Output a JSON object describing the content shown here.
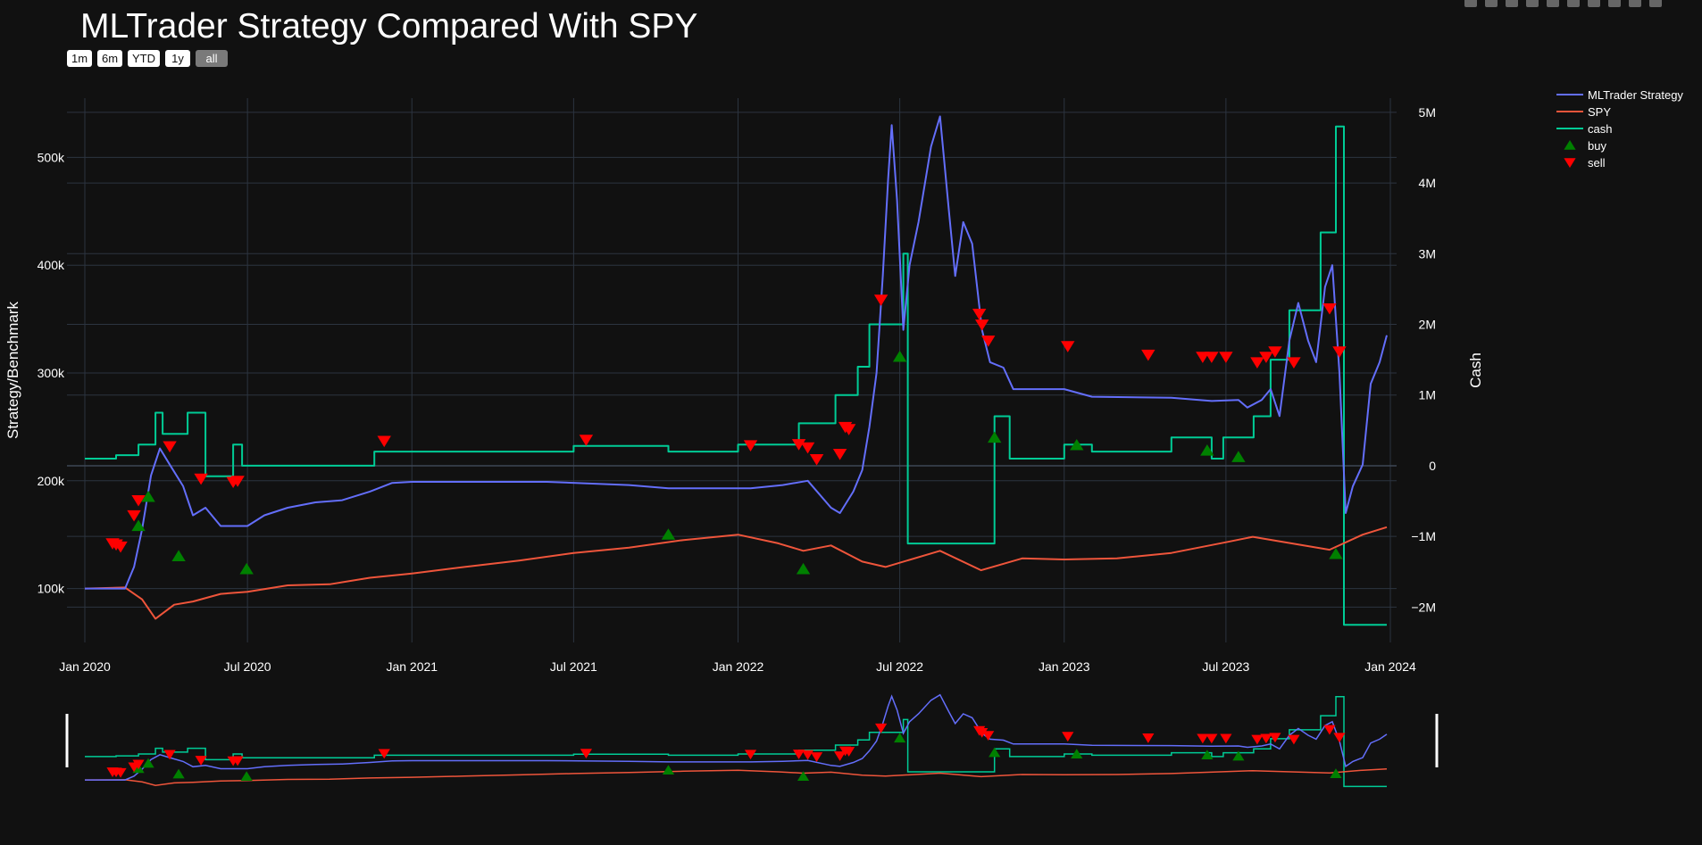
{
  "title": "MLTrader Strategy Compared With SPY",
  "range_buttons": [
    "1m",
    "6m",
    "YTD",
    "1y",
    "all"
  ],
  "active_range": "all",
  "modebar_icons": [
    "camera-icon",
    "zoom-icon",
    "pan-icon",
    "box-select-icon",
    "lasso-icon",
    "zoom-in-icon",
    "zoom-out-icon",
    "autoscale-icon",
    "home-icon",
    "plotly-logo-icon"
  ],
  "colors": {
    "strategy": "#636efa",
    "spy": "#ef553b",
    "cash": "#00cc96",
    "buy": "#008000",
    "sell": "#ff0000",
    "background": "#111111"
  },
  "chart_data": {
    "type": "line",
    "ylabel": "Strategy/Benchmark",
    "y2label": "Cash",
    "x_range": [
      "2019-12-12",
      "2024-01-08"
    ],
    "y_range": [
      50000,
      555000
    ],
    "y2_range": [
      -2500000,
      5200000
    ],
    "x_ticks": [
      {
        "date": "2020-01-01",
        "label": "Jan 2020"
      },
      {
        "date": "2020-07-01",
        "label": "Jul 2020"
      },
      {
        "date": "2021-01-01",
        "label": "Jan 2021"
      },
      {
        "date": "2021-07-01",
        "label": "Jul 2021"
      },
      {
        "date": "2022-01-01",
        "label": "Jan 2022"
      },
      {
        "date": "2022-07-01",
        "label": "Jul 2022"
      },
      {
        "date": "2023-01-01",
        "label": "Jan 2023"
      },
      {
        "date": "2023-07-01",
        "label": "Jul 2023"
      },
      {
        "date": "2024-01-01",
        "label": "Jan 2024"
      }
    ],
    "y_ticks": [
      {
        "value": 100000,
        "label": "100k"
      },
      {
        "value": 200000,
        "label": "200k"
      },
      {
        "value": 300000,
        "label": "300k"
      },
      {
        "value": 400000,
        "label": "400k"
      },
      {
        "value": 500000,
        "label": "500k"
      }
    ],
    "y2_ticks": [
      {
        "value": -2000000,
        "label": "−2M"
      },
      {
        "value": -1000000,
        "label": "−1M"
      },
      {
        "value": 0,
        "label": "0"
      },
      {
        "value": 1000000,
        "label": "1M"
      },
      {
        "value": 2000000,
        "label": "2M"
      },
      {
        "value": 3000000,
        "label": "3M"
      },
      {
        "value": 4000000,
        "label": "4M"
      },
      {
        "value": 5000000,
        "label": "5M"
      }
    ],
    "legend": {
      "placement": "top-right",
      "entries": [
        "MLTrader Strategy",
        "SPY",
        "cash",
        "buy",
        "sell"
      ]
    },
    "series": [
      {
        "name": "MLTrader Strategy",
        "axis": "y",
        "kind": "line",
        "points": [
          [
            "2020-01-01",
            100000
          ],
          [
            "2020-02-15",
            100000
          ],
          [
            "2020-02-25",
            120000
          ],
          [
            "2020-03-05",
            155000
          ],
          [
            "2020-03-15",
            205000
          ],
          [
            "2020-03-25",
            230000
          ],
          [
            "2020-04-05",
            215000
          ],
          [
            "2020-04-20",
            195000
          ],
          [
            "2020-05-01",
            168000
          ],
          [
            "2020-05-15",
            175000
          ],
          [
            "2020-06-01",
            158000
          ],
          [
            "2020-07-01",
            158000
          ],
          [
            "2020-07-20",
            168000
          ],
          [
            "2020-08-15",
            175000
          ],
          [
            "2020-09-15",
            180000
          ],
          [
            "2020-10-15",
            182000
          ],
          [
            "2020-11-15",
            190000
          ],
          [
            "2020-12-10",
            198000
          ],
          [
            "2021-01-01",
            199000
          ],
          [
            "2021-06-01",
            199000
          ],
          [
            "2021-09-01",
            196000
          ],
          [
            "2021-10-15",
            193000
          ],
          [
            "2022-01-15",
            193000
          ],
          [
            "2022-02-20",
            196000
          ],
          [
            "2022-03-20",
            200000
          ],
          [
            "2022-04-15",
            175000
          ],
          [
            "2022-04-25",
            170000
          ],
          [
            "2022-05-10",
            190000
          ],
          [
            "2022-05-20",
            210000
          ],
          [
            "2022-05-28",
            250000
          ],
          [
            "2022-06-05",
            300000
          ],
          [
            "2022-06-12",
            390000
          ],
          [
            "2022-06-18",
            480000
          ],
          [
            "2022-06-22",
            530000
          ],
          [
            "2022-06-28",
            460000
          ],
          [
            "2022-07-05",
            340000
          ],
          [
            "2022-07-12",
            400000
          ],
          [
            "2022-07-22",
            440000
          ],
          [
            "2022-08-05",
            510000
          ],
          [
            "2022-08-15",
            538000
          ],
          [
            "2022-08-25",
            450000
          ],
          [
            "2022-09-01",
            390000
          ],
          [
            "2022-09-10",
            440000
          ],
          [
            "2022-09-20",
            420000
          ],
          [
            "2022-10-01",
            340000
          ],
          [
            "2022-10-10",
            310000
          ],
          [
            "2022-10-25",
            305000
          ],
          [
            "2022-11-05",
            285000
          ],
          [
            "2023-01-01",
            285000
          ],
          [
            "2023-02-01",
            278000
          ],
          [
            "2023-05-01",
            277000
          ],
          [
            "2023-06-15",
            274000
          ],
          [
            "2023-07-15",
            275000
          ],
          [
            "2023-07-25",
            268000
          ],
          [
            "2023-08-10",
            275000
          ],
          [
            "2023-08-20",
            285000
          ],
          [
            "2023-08-30",
            260000
          ],
          [
            "2023-09-10",
            330000
          ],
          [
            "2023-09-20",
            365000
          ],
          [
            "2023-10-01",
            330000
          ],
          [
            "2023-10-10",
            310000
          ],
          [
            "2023-10-20",
            380000
          ],
          [
            "2023-10-28",
            400000
          ],
          [
            "2023-11-05",
            300000
          ],
          [
            "2023-11-12",
            170000
          ],
          [
            "2023-11-20",
            195000
          ],
          [
            "2023-12-01",
            215000
          ],
          [
            "2023-12-10",
            290000
          ],
          [
            "2023-12-20",
            310000
          ],
          [
            "2023-12-28",
            335000
          ]
        ]
      },
      {
        "name": "SPY",
        "axis": "y",
        "kind": "line",
        "points": [
          [
            "2020-01-01",
            100000
          ],
          [
            "2020-02-15",
            101000
          ],
          [
            "2020-03-05",
            90000
          ],
          [
            "2020-03-20",
            72000
          ],
          [
            "2020-04-10",
            85000
          ],
          [
            "2020-05-01",
            88000
          ],
          [
            "2020-06-01",
            95000
          ],
          [
            "2020-07-01",
            97000
          ],
          [
            "2020-08-15",
            103000
          ],
          [
            "2020-10-01",
            104000
          ],
          [
            "2020-11-15",
            110000
          ],
          [
            "2021-01-01",
            114000
          ],
          [
            "2021-03-01",
            120000
          ],
          [
            "2021-05-01",
            126000
          ],
          [
            "2021-07-01",
            133000
          ],
          [
            "2021-09-01",
            138000
          ],
          [
            "2021-11-01",
            145000
          ],
          [
            "2022-01-01",
            150000
          ],
          [
            "2022-02-15",
            142000
          ],
          [
            "2022-03-15",
            135000
          ],
          [
            "2022-04-15",
            140000
          ],
          [
            "2022-05-20",
            125000
          ],
          [
            "2022-06-15",
            120000
          ],
          [
            "2022-08-15",
            135000
          ],
          [
            "2022-09-30",
            117000
          ],
          [
            "2022-11-15",
            128000
          ],
          [
            "2023-01-01",
            127000
          ],
          [
            "2023-03-01",
            128000
          ],
          [
            "2023-05-01",
            133000
          ],
          [
            "2023-07-01",
            143000
          ],
          [
            "2023-07-31",
            148000
          ],
          [
            "2023-10-25",
            136000
          ],
          [
            "2023-12-01",
            150000
          ],
          [
            "2023-12-28",
            157000
          ]
        ]
      },
      {
        "name": "cash",
        "axis": "y2",
        "kind": "step",
        "points": [
          [
            "2020-01-01",
            100000
          ],
          [
            "2020-02-05",
            150000
          ],
          [
            "2020-03-01",
            300000
          ],
          [
            "2020-03-20",
            750000
          ],
          [
            "2020-03-28",
            450000
          ],
          [
            "2020-04-25",
            750000
          ],
          [
            "2020-05-15",
            -150000
          ],
          [
            "2020-06-15",
            300000
          ],
          [
            "2020-06-25",
            0
          ],
          [
            "2020-11-20",
            200000
          ],
          [
            "2021-07-01",
            280000
          ],
          [
            "2021-10-15",
            200000
          ],
          [
            "2022-01-01",
            300000
          ],
          [
            "2022-03-10",
            600000
          ],
          [
            "2022-04-20",
            1000000
          ],
          [
            "2022-05-15",
            1400000
          ],
          [
            "2022-05-28",
            2000000
          ],
          [
            "2022-07-05",
            3000000
          ],
          [
            "2022-07-10",
            -1100000
          ],
          [
            "2022-10-15",
            700000
          ],
          [
            "2022-11-01",
            100000
          ],
          [
            "2023-01-01",
            300000
          ],
          [
            "2023-02-01",
            200000
          ],
          [
            "2023-05-01",
            400000
          ],
          [
            "2023-06-15",
            100000
          ],
          [
            "2023-06-28",
            400000
          ],
          [
            "2023-08-01",
            700000
          ],
          [
            "2023-08-20",
            1500000
          ],
          [
            "2023-09-10",
            2200000
          ],
          [
            "2023-10-15",
            3300000
          ],
          [
            "2023-11-01",
            4800000
          ],
          [
            "2023-11-10",
            -2250000
          ],
          [
            "2023-12-28",
            -2250000
          ]
        ]
      }
    ],
    "markers": {
      "buy": [
        [
          "2020-03-01",
          158000
        ],
        [
          "2020-03-12",
          185000
        ],
        [
          "2020-04-15",
          130000
        ],
        [
          "2020-06-30",
          118000
        ],
        [
          "2021-10-15",
          150000
        ],
        [
          "2022-03-15",
          118000
        ],
        [
          "2022-07-01",
          315000
        ],
        [
          "2022-10-15",
          240000
        ],
        [
          "2023-01-15",
          233000
        ],
        [
          "2023-06-10",
          228000
        ],
        [
          "2023-07-15",
          222000
        ],
        [
          "2023-11-01",
          132000
        ]
      ],
      "sell": [
        [
          "2020-02-01",
          142000
        ],
        [
          "2020-02-05",
          141000
        ],
        [
          "2020-02-10",
          139000
        ],
        [
          "2020-02-25",
          168000
        ],
        [
          "2020-03-01",
          182000
        ],
        [
          "2020-04-05",
          232000
        ],
        [
          "2020-05-10",
          202000
        ],
        [
          "2020-06-15",
          199000
        ],
        [
          "2020-06-20",
          200000
        ],
        [
          "2020-12-01",
          237000
        ],
        [
          "2021-07-15",
          238000
        ],
        [
          "2022-01-15",
          233000
        ],
        [
          "2022-03-10",
          234000
        ],
        [
          "2022-03-20",
          231000
        ],
        [
          "2022-03-30",
          220000
        ],
        [
          "2022-04-25",
          225000
        ],
        [
          "2022-05-01",
          250000
        ],
        [
          "2022-05-05",
          248000
        ],
        [
          "2022-06-10",
          368000
        ],
        [
          "2022-09-28",
          355000
        ],
        [
          "2022-10-01",
          345000
        ],
        [
          "2022-10-08",
          330000
        ],
        [
          "2023-01-05",
          325000
        ],
        [
          "2023-04-05",
          317000
        ],
        [
          "2023-06-05",
          315000
        ],
        [
          "2023-06-15",
          315000
        ],
        [
          "2023-07-01",
          315000
        ],
        [
          "2023-08-05",
          310000
        ],
        [
          "2023-08-15",
          315000
        ],
        [
          "2023-08-25",
          320000
        ],
        [
          "2023-09-15",
          310000
        ],
        [
          "2023-10-25",
          360000
        ],
        [
          "2023-11-05",
          320000
        ]
      ]
    }
  }
}
